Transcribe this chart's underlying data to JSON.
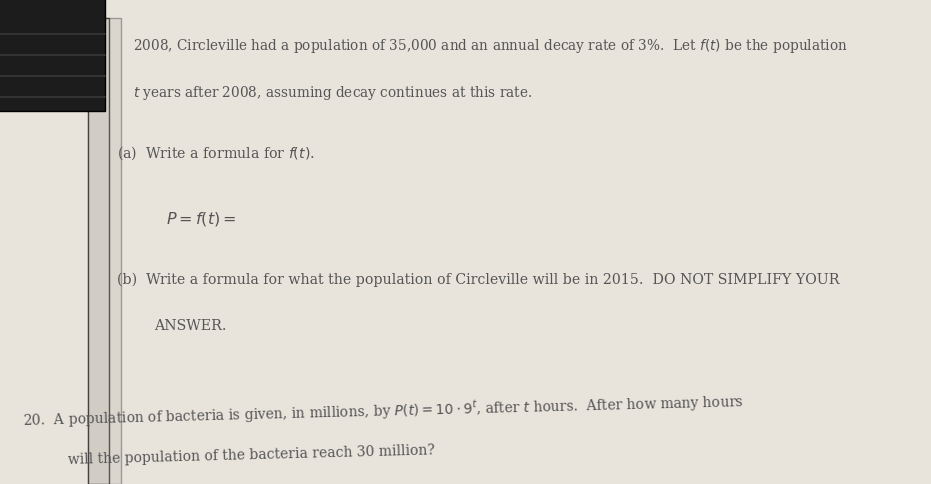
{
  "bg_color": "#e8e4dc",
  "text_color": "#555555",
  "dark_text": "#333333",
  "fig_width": 9.31,
  "fig_height": 4.85,
  "line1": "2008, Circleville had a population of 35,000 and an annual decay rate of 3%.  Let $f(t)$ be the population",
  "line2": "$t$ years after 2008, assuming decay continues at this rate.",
  "part_a_label": "(a)  Write a formula for $f(t)$.",
  "part_a_formula": "$P = f(t) =$",
  "part_b_label": "(b)  Write a formula for what the population of Circleville will be in 2015.  DO NOT SIMPLIFY YOUR",
  "part_b_label2": "ANSWER.",
  "problem20": "20.  A population of bacteria is given, in millions, by $P(t) = 10 \\cdot 9^t$, after $t$ hours.  After how many hours",
  "problem20b": "will the population of the bacteria reach 30 million?"
}
